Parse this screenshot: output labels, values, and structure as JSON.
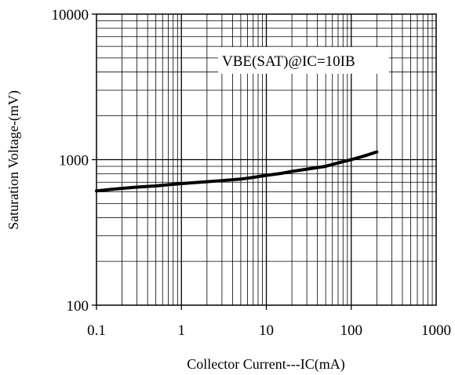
{
  "chart_data": {
    "type": "line",
    "x_scale": "log",
    "y_scale": "log",
    "xlim": [
      0.1,
      1000
    ],
    "ylim": [
      100,
      10000
    ],
    "xlabel": "Collector Current---IC(mA)",
    "ylabel": "Saturation Voltage-(mV)",
    "x_tick_labels": [
      "0.1",
      "1",
      "10",
      "100",
      "1000"
    ],
    "y_tick_labels": [
      "100",
      "1000",
      "10000"
    ],
    "grid": true,
    "annotation": "VBE(SAT)@IC=10IB",
    "series": [
      {
        "x": [
          0.1,
          0.15,
          0.2,
          0.3,
          0.5,
          0.7,
          1,
          1.5,
          2,
          3,
          5,
          7,
          10,
          15,
          20,
          30,
          50,
          70,
          100,
          150,
          200
        ],
        "y": [
          610,
          625,
          635,
          648,
          660,
          672,
          685,
          697,
          705,
          718,
          735,
          755,
          780,
          805,
          830,
          860,
          900,
          950,
          1000,
          1070,
          1130
        ]
      }
    ]
  }
}
